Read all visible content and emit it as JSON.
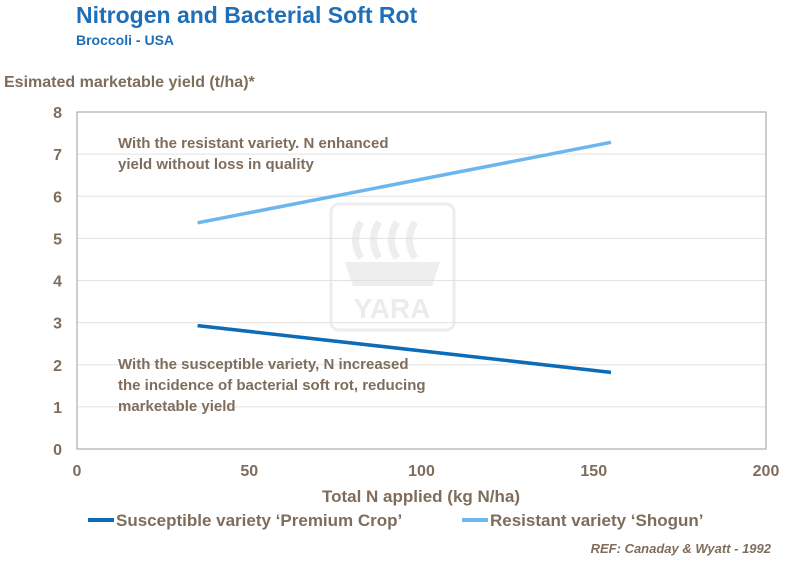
{
  "header": {
    "title": "Nitrogen and Bacterial Soft Rot",
    "subtitle": "Broccoli - USA"
  },
  "reference": "REF: Canaday & Wyatt - 1992",
  "watermark": {
    "text": "YARA"
  },
  "colors": {
    "title": "#1f6fb8",
    "axis_text": "#7f6d5c",
    "susceptible": "#0c6cb8",
    "resistant": "#6cb6ee"
  },
  "chart_data": {
    "type": "line",
    "title": "Nitrogen and Bacterial Soft Rot",
    "subtitle": "Broccoli - USA",
    "xlabel": "Total N applied (kg N/ha)",
    "ylabel": "Esimated marketable yield (t/ha)*",
    "xlim": [
      0,
      200
    ],
    "ylim": [
      0,
      8
    ],
    "xticks": [
      0,
      50,
      100,
      150,
      200
    ],
    "yticks": [
      0,
      1,
      2,
      3,
      4,
      5,
      6,
      7,
      8
    ],
    "grid": "horizontal",
    "legend_position": "bottom",
    "series": [
      {
        "name": "Susceptible  variety ‘Premium Crop’",
        "color": "#0c6cb8",
        "x": [
          35,
          155
        ],
        "y": [
          2.93,
          1.82
        ]
      },
      {
        "name": "Resistant variety ‘Shogun’",
        "color": "#6cb6ee",
        "x": [
          35,
          155
        ],
        "y": [
          5.37,
          7.28
        ]
      }
    ],
    "annotations": [
      {
        "lines": [
          "With the resistant variety. N enhanced",
          "yield without loss in quality"
        ]
      },
      {
        "lines": [
          "With the susceptible variety, N increased",
          "the incidence of bacterial soft rot, reducing",
          "marketable yield"
        ]
      }
    ]
  }
}
